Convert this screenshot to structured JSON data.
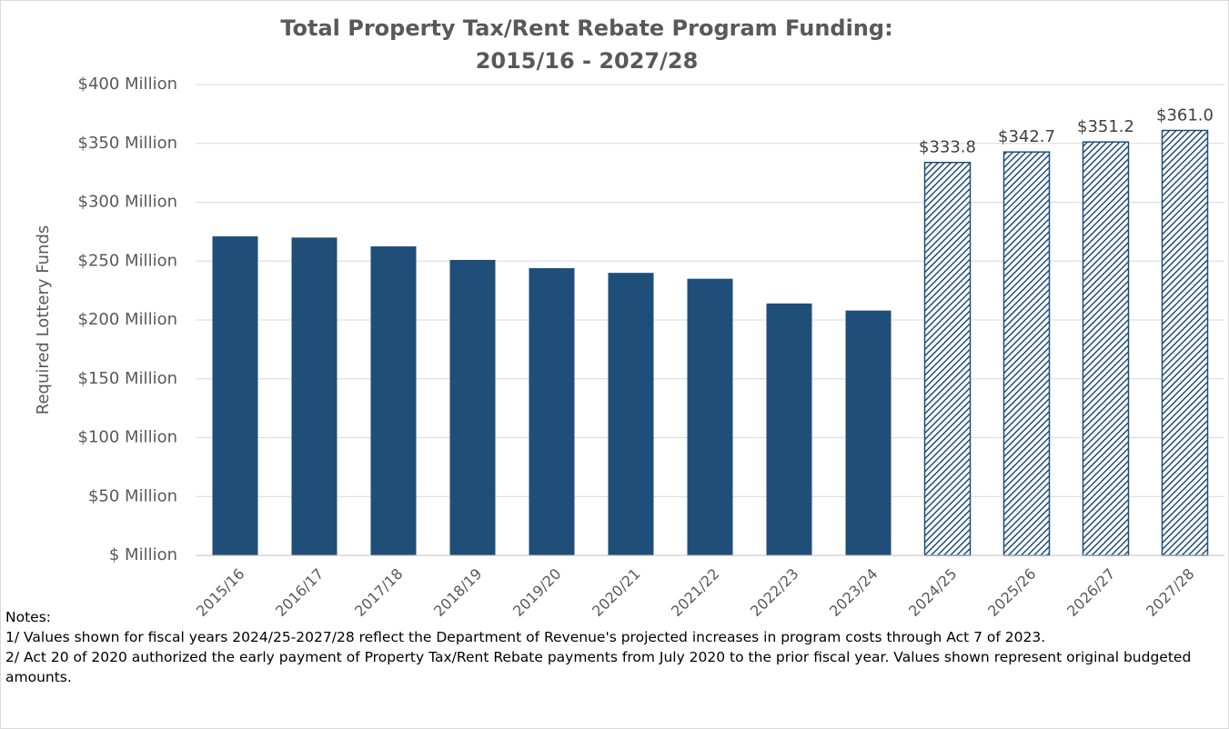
{
  "chart_data": {
    "type": "bar",
    "title": [
      "Total Property Tax/Rent Rebate Program Funding:",
      "2015/16 - 2027/28"
    ],
    "y_label": "Required Lottery Funds",
    "categories": [
      "2015/16",
      "2016/17",
      "2017/18",
      "2018/19",
      "2019/20",
      "2020/21",
      "2021/22",
      "2022/23",
      "2023/24",
      "2024/25",
      "2025/26",
      "2026/27",
      "2027/28"
    ],
    "values": [
      271,
      270,
      262.5,
      251,
      244,
      240,
      235,
      214,
      208,
      333.8,
      342.7,
      351.2,
      361.0
    ],
    "value_labels": [
      null,
      null,
      null,
      null,
      null,
      null,
      null,
      null,
      null,
      "$333.8",
      "$342.7",
      "$351.2",
      "$361.0"
    ],
    "bar_styles": [
      "solid",
      "solid",
      "solid",
      "solid",
      "solid",
      "solid",
      "solid",
      "solid",
      "solid",
      "hatched",
      "hatched",
      "hatched",
      "hatched"
    ],
    "color": "#1f4e79",
    "ylim": [
      0,
      400
    ],
    "yticks": [
      {
        "value": 0,
        "label": "$ Million"
      },
      {
        "value": 50,
        "label": "$50 Million"
      },
      {
        "value": 100,
        "label": "$100 Million"
      },
      {
        "value": 150,
        "label": "$150 Million"
      },
      {
        "value": 200,
        "label": "$200 Million"
      },
      {
        "value": 250,
        "label": "$250 Million"
      },
      {
        "value": 300,
        "label": "$300 Million"
      },
      {
        "value": 350,
        "label": "$350 Million"
      },
      {
        "value": 400,
        "label": "$400 Million"
      }
    ],
    "grid": true,
    "notes": [
      "Notes:",
      "1/ Values shown for fiscal years 2024/25-2027/28 reflect the Department of Revenue's projected increases in program costs through Act 7 of 2023.",
      "2/ Act 20 of 2020 authorized the early payment of Property Tax/Rent Rebate payments from July 2020 to the prior fiscal year. Values shown represent original budgeted amounts."
    ]
  }
}
